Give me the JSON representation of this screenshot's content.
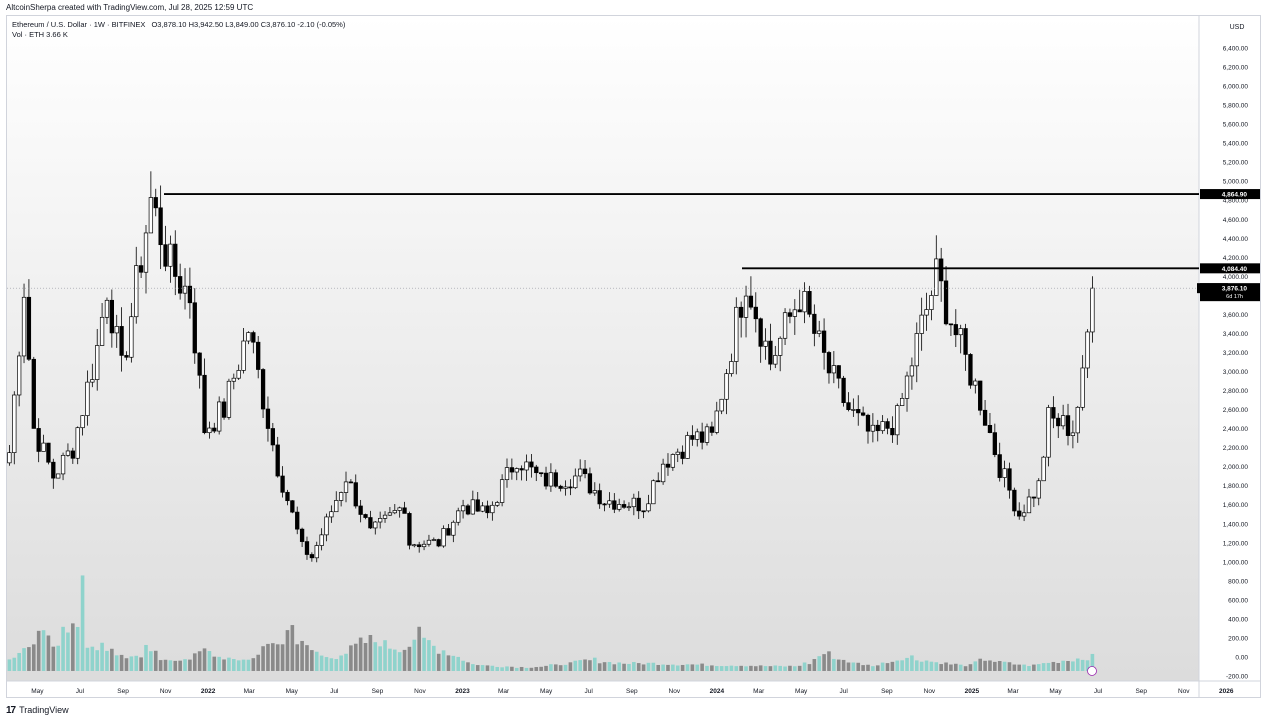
{
  "caption": "AltcoinSherpa created with TradingView.com, Jul 28, 2025 12:59 UTC",
  "legend": {
    "symbol": "Ethereum / U.S. Dollar · 1W · BITFINEX",
    "ohlc": "O3,878.10  H3,942.50  L3,849.00  C3,876.10  -2.10 (-0.05%)",
    "volume": "Vol · ETH  3.66 K"
  },
  "footer": {
    "brand": "TradingView"
  },
  "chart_data": {
    "type": "candlestick",
    "currency_label": "USD",
    "x_labels": [
      "May",
      "Jul",
      "Sep",
      "Nov",
      "2022",
      "Mar",
      "May",
      "Jul",
      "Sep",
      "Nov",
      "2023",
      "Mar",
      "May",
      "Jul",
      "Sep",
      "Nov",
      "2024",
      "Mar",
      "May",
      "Jul",
      "Sep",
      "Nov",
      "2025",
      "Mar",
      "May",
      "Jul",
      "Sep",
      "Nov",
      "2026"
    ],
    "price_ticks": [
      "6,400.00",
      "6,200.00",
      "6,000.00",
      "5,800.00",
      "5,600.00",
      "5,400.00",
      "5,200.00",
      "5,000.00",
      "4,800.00",
      "4,600.00",
      "4,400.00",
      "4,200.00",
      "4,000.00",
      "3,800.00",
      "3,600.00",
      "3,400.00",
      "3,200.00",
      "3,000.00",
      "2,800.00",
      "2,600.00",
      "2,400.00",
      "2,200.00",
      "2,000.00",
      "1,800.00",
      "1,600.00",
      "1,400.00",
      "1,200.00",
      "1,000.00",
      "800.00",
      "600.00",
      "400.00",
      "200.00",
      "0.00",
      "-200.00"
    ],
    "ylim": [
      -200,
      6600
    ],
    "resistance_levels": [
      {
        "label": "4,864.90",
        "value": 4864.9
      },
      {
        "label": "4,084.40",
        "value": 4084.4
      }
    ],
    "last_price": {
      "symbol": "ETHUSD",
      "value_label": "3,876.10",
      "countdown": "6d 17h",
      "value": 3876.1
    },
    "weekly_close_path": [
      [
        "2021-04-19",
        2150
      ],
      [
        "2021-05-10",
        3900
      ],
      [
        "2021-05-24",
        2400
      ],
      [
        "2021-06-21",
        1900
      ],
      [
        "2021-07-19",
        2200
      ],
      [
        "2021-08-23",
        3250
      ],
      [
        "2021-09-06",
        3900
      ],
      [
        "2021-09-27",
        3000
      ],
      [
        "2021-10-18",
        3900
      ],
      [
        "2021-11-08",
        4800
      ],
      [
        "2021-12-06",
        4100
      ],
      [
        "2022-01-03",
        3800
      ],
      [
        "2022-01-24",
        2400
      ],
      [
        "2022-02-21",
        2600
      ],
      [
        "2022-03-28",
        3450
      ],
      [
        "2022-05-09",
        2000
      ],
      [
        "2022-06-13",
        1150
      ],
      [
        "2022-06-27",
        1050
      ],
      [
        "2022-08-15",
        1900
      ],
      [
        "2022-09-19",
        1300
      ],
      [
        "2022-11-07",
        1600
      ],
      [
        "2022-11-14",
        1200
      ],
      [
        "2022-12-26",
        1200
      ],
      [
        "2023-01-30",
        1600
      ],
      [
        "2023-03-06",
        1500
      ],
      [
        "2023-04-17",
        2100
      ],
      [
        "2023-05-22",
        1850
      ],
      [
        "2023-07-17",
        1900
      ],
      [
        "2023-08-21",
        1650
      ],
      [
        "2023-10-16",
        1600
      ],
      [
        "2023-11-13",
        2050
      ],
      [
        "2023-12-25",
        2300
      ],
      [
        "2024-01-22",
        2300
      ],
      [
        "2024-03-11",
        4000
      ],
      [
        "2024-04-15",
        3100
      ],
      [
        "2024-05-27",
        3800
      ],
      [
        "2024-07-08",
        3000
      ],
      [
        "2024-08-05",
        2600
      ],
      [
        "2024-09-09",
        2300
      ],
      [
        "2024-10-14",
        2500
      ],
      [
        "2024-11-11",
        3300
      ],
      [
        "2024-12-09",
        4000
      ],
      [
        "2025-01-06",
        3400
      ],
      [
        "2025-02-10",
        2700
      ],
      [
        "2025-03-10",
        2000
      ],
      [
        "2025-04-07",
        1500
      ],
      [
        "2025-05-05",
        1800
      ],
      [
        "2025-05-19",
        2500
      ],
      [
        "2025-06-23",
        2400
      ],
      [
        "2025-07-07",
        2900
      ],
      [
        "2025-07-21",
        3876
      ]
    ],
    "volume_samples_k": [
      140,
      210,
      250,
      300,
      520,
      340,
      260,
      400,
      480,
      520,
      1050,
      300,
      200,
      260,
      230,
      180,
      150,
      140,
      160,
      260,
      180,
      120,
      100,
      110,
      130,
      140,
      170,
      200,
      230,
      160,
      140,
      120,
      100,
      110,
      130,
      200,
      240,
      280,
      300,
      420,
      470,
      330,
      240,
      200,
      160,
      140,
      150,
      190,
      230,
      260,
      300,
      330,
      310,
      280,
      250,
      220,
      270,
      350,
      390,
      310,
      260,
      220,
      190,
      160,
      120,
      90,
      70,
      60,
      55,
      50,
      48,
      45,
      40,
      38,
      40,
      45,
      50,
      60,
      70,
      80,
      90,
      100,
      110,
      120,
      100,
      90,
      85,
      80,
      80,
      80,
      80,
      80,
      78,
      75,
      72,
      70,
      70,
      68,
      66,
      64,
      62,
      60,
      60,
      60,
      58,
      56,
      54,
      52,
      50,
      50,
      50,
      50,
      60,
      80,
      120,
      160,
      180,
      150,
      120,
      100,
      80,
      70,
      60,
      60,
      80,
      100,
      120,
      140,
      150,
      120,
      110,
      100,
      90,
      80,
      70,
      60,
      60,
      90,
      110,
      120,
      100,
      90,
      80,
      70,
      60,
      60,
      70,
      80,
      90,
      100,
      110,
      120,
      130,
      140,
      150
    ]
  }
}
